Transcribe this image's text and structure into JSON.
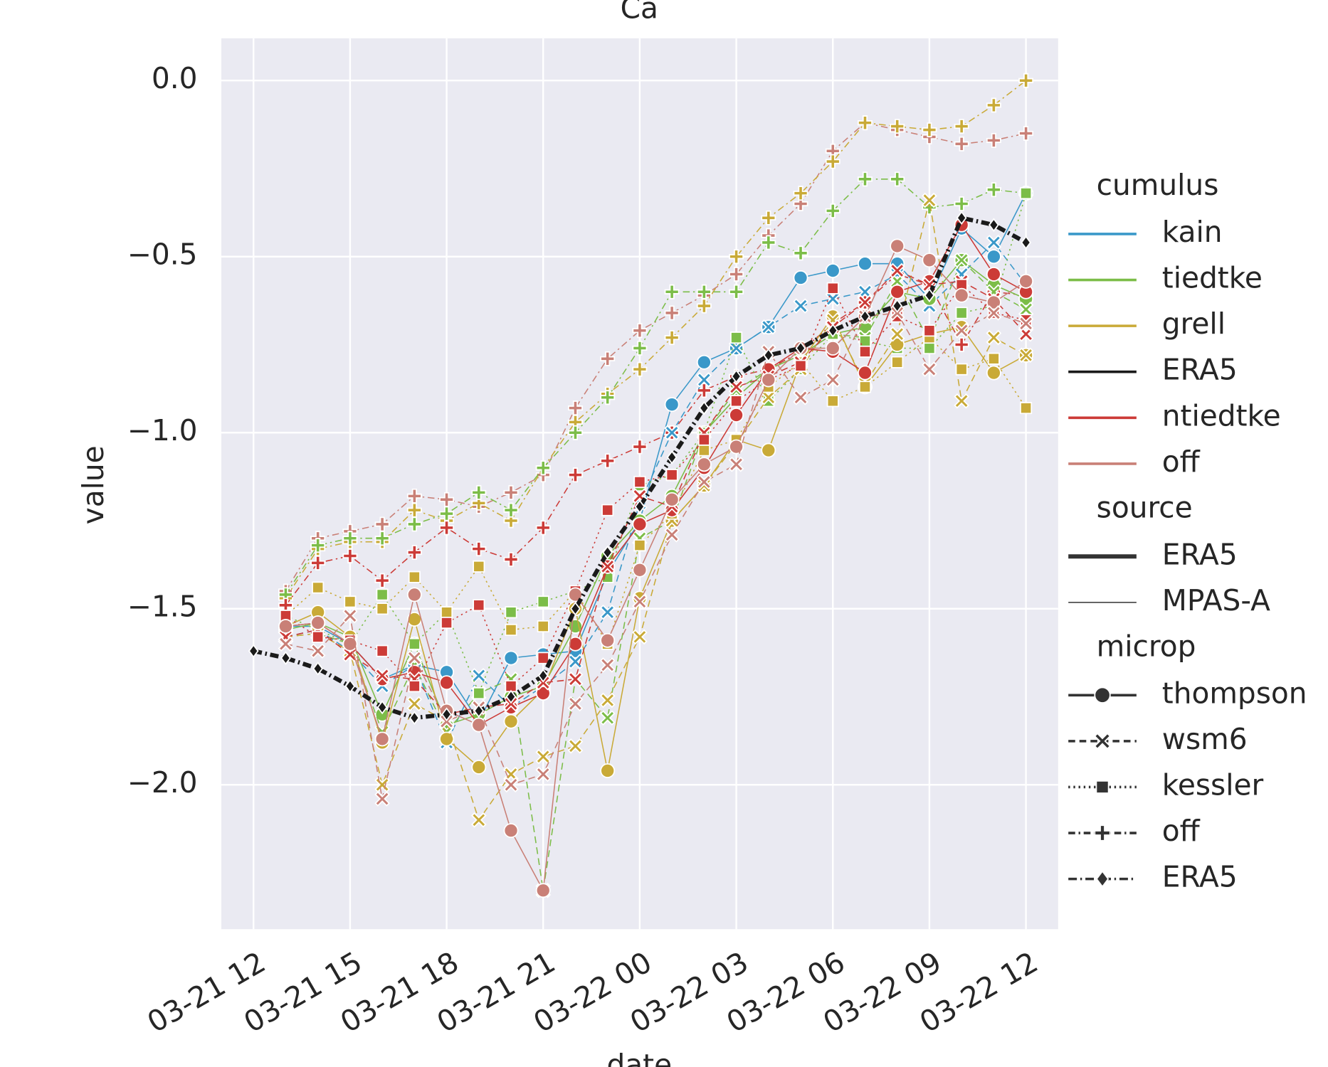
{
  "chart_data": {
    "type": "line",
    "title": "Ca",
    "xlabel": "date",
    "ylabel": "value",
    "x": [
      "03-21 12",
      "03-21 13",
      "03-21 14",
      "03-21 15",
      "03-21 16",
      "03-21 17",
      "03-21 18",
      "03-21 19",
      "03-21 20",
      "03-21 21",
      "03-21 22",
      "03-21 23",
      "03-22 00",
      "03-22 01",
      "03-22 02",
      "03-22 03",
      "03-22 04",
      "03-22 05",
      "03-22 06",
      "03-22 07",
      "03-22 08",
      "03-22 09",
      "03-22 10",
      "03-22 11",
      "03-22 12"
    ],
    "xlim": [
      "03-21 11",
      "03-22 13"
    ],
    "xticks": [
      "03-21 12",
      "03-21 15",
      "03-21 18",
      "03-21 21",
      "03-22 00",
      "03-22 03",
      "03-22 06",
      "03-22 09",
      "03-22 12"
    ],
    "ylim": [
      -2.41,
      0.12
    ],
    "yticks": [
      {
        "value": -2,
        "label": "−2.0"
      },
      {
        "value": -1.5,
        "label": "−1.5"
      },
      {
        "value": -1,
        "label": "−1.0"
      },
      {
        "value": -0.5,
        "label": "−0.5"
      },
      {
        "value": 0,
        "label": "0.0"
      }
    ],
    "grid": true,
    "background": "#eaeaf2",
    "legend": [
      {
        "title": "cumulus",
        "entries": [
          {
            "label": "kain",
            "color": "#3a98c9"
          },
          {
            "label": "tiedtke",
            "color": "#7cbd48"
          },
          {
            "label": "grell",
            "color": "#c9aa37"
          },
          {
            "label": "ERA5",
            "color": "#1a1a1a"
          },
          {
            "label": "ntiedtke",
            "color": "#cc3b37"
          },
          {
            "label": "off",
            "color": "#c98077"
          }
        ]
      },
      {
        "title": "source",
        "entries": [
          {
            "label": "ERA5",
            "width": 5
          },
          {
            "label": "MPAS-A",
            "width": 1.3
          }
        ]
      },
      {
        "title": "microp",
        "entries": [
          {
            "label": "thompson",
            "marker": "circle",
            "dash": ""
          },
          {
            "label": "wsm6",
            "marker": "x",
            "dash": "8,5"
          },
          {
            "label": "kessler",
            "marker": "square",
            "dash": "2,4"
          },
          {
            "label": "off",
            "marker": "plus",
            "dash": "8,4,2,4"
          },
          {
            "label": "ERA5",
            "marker": "diamond",
            "dash": "10,4,2,4"
          }
        ]
      }
    ],
    "series": [
      {
        "cumulus": 5,
        "source": 1,
        "microp": 3,
        "values": [
          null,
          -1.45,
          -1.3,
          -1.28,
          -1.26,
          -1.18,
          -1.19,
          -1.21,
          -1.17,
          -1.12,
          -0.93,
          -0.79,
          -0.71,
          -0.66,
          -0.61,
          -0.55,
          -0.44,
          -0.35,
          -0.2,
          -0.12,
          -0.14,
          -0.16,
          -0.18,
          -0.17,
          -0.15
        ]
      },
      {
        "cumulus": 2,
        "source": 1,
        "microp": 3,
        "values": [
          null,
          -1.47,
          -1.33,
          -1.31,
          -1.31,
          -1.22,
          -1.25,
          -1.2,
          -1.25,
          -1.1,
          -0.97,
          -0.89,
          -0.82,
          -0.73,
          -0.64,
          -0.5,
          -0.39,
          -0.32,
          -0.23,
          -0.12,
          -0.13,
          -0.14,
          -0.13,
          -0.07,
          0.0
        ]
      },
      {
        "cumulus": 1,
        "source": 1,
        "microp": 3,
        "values": [
          null,
          -1.46,
          -1.32,
          -1.3,
          -1.3,
          -1.26,
          -1.23,
          -1.17,
          -1.22,
          -1.1,
          -1.0,
          -0.9,
          -0.76,
          -0.6,
          -0.6,
          -0.6,
          -0.46,
          -0.49,
          -0.37,
          -0.28,
          -0.28,
          -0.36,
          -0.35,
          -0.31,
          -0.32
        ]
      },
      {
        "cumulus": 4,
        "source": 1,
        "microp": 3,
        "values": [
          null,
          -1.49,
          -1.37,
          -1.35,
          -1.42,
          -1.34,
          -1.27,
          -1.33,
          -1.36,
          -1.27,
          -1.12,
          -1.08,
          -1.04,
          -1.0,
          -0.88,
          -0.84,
          -0.82,
          -0.77,
          -0.69,
          -0.63,
          -0.55,
          -0.58,
          -0.75,
          -0.6,
          -0.61
        ]
      },
      {
        "cumulus": 0,
        "source": 1,
        "microp": 0,
        "values": [
          null,
          -1.55,
          -1.55,
          -1.6,
          -1.7,
          -1.66,
          -1.68,
          -1.82,
          -1.64,
          -1.63,
          -1.62,
          -1.4,
          -1.25,
          -0.92,
          -0.8,
          -0.76,
          -0.7,
          -0.56,
          -0.54,
          -0.52,
          -0.52,
          -0.62,
          -0.42,
          -0.5,
          -0.32
        ]
      },
      {
        "cumulus": 0,
        "source": 1,
        "microp": 1,
        "values": [
          null,
          -1.58,
          -1.56,
          -1.62,
          -1.72,
          -1.66,
          -1.88,
          -1.69,
          -1.78,
          -1.72,
          -1.65,
          -1.51,
          -1.2,
          -1.0,
          -0.85,
          -0.76,
          -0.7,
          -0.64,
          -0.62,
          -0.6,
          -0.55,
          -0.64,
          -0.55,
          -0.46,
          -0.58
        ]
      },
      {
        "cumulus": 1,
        "source": 1,
        "microp": 0,
        "values": [
          null,
          -1.56,
          -1.54,
          -1.58,
          -1.8,
          -1.6,
          -1.83,
          -1.8,
          -1.75,
          -1.72,
          -1.55,
          -1.35,
          -1.25,
          -1.18,
          -1.0,
          -0.9,
          -0.82,
          -0.78,
          -0.72,
          -0.7,
          -0.6,
          -0.62,
          -0.51,
          -0.58,
          -0.62
        ]
      },
      {
        "cumulus": 1,
        "source": 1,
        "microp": 1,
        "values": [
          null,
          -1.58,
          -1.57,
          -1.6,
          -1.85,
          -1.66,
          -1.85,
          -1.74,
          -1.7,
          -2.3,
          -1.7,
          -1.81,
          -1.3,
          -1.25,
          -1.0,
          -0.88,
          -0.82,
          -0.78,
          -0.72,
          -0.73,
          -0.57,
          -0.74,
          -0.51,
          -0.6,
          -0.65
        ]
      },
      {
        "cumulus": 1,
        "source": 1,
        "microp": 2,
        "values": [
          null,
          -1.52,
          -1.56,
          -1.6,
          -1.46,
          -1.6,
          -1.51,
          -1.74,
          -1.51,
          -1.48,
          -1.45,
          -1.41,
          -1.15,
          -1.12,
          -1.0,
          -0.73,
          -0.91,
          -0.82,
          -0.72,
          -0.74,
          -0.76,
          -0.76,
          -0.66,
          -0.64,
          -0.32
        ]
      },
      {
        "cumulus": 2,
        "source": 1,
        "microp": 0,
        "values": [
          null,
          -1.55,
          -1.51,
          -1.58,
          -1.88,
          -1.53,
          -1.87,
          -1.95,
          -1.82,
          -1.73,
          -1.5,
          -1.96,
          -1.47,
          -1.25,
          -1.15,
          -1.02,
          -1.05,
          -0.8,
          -0.67,
          -0.87,
          -0.75,
          -0.72,
          -0.7,
          -0.83,
          -0.78
        ]
      },
      {
        "cumulus": 2,
        "source": 1,
        "microp": 1,
        "values": [
          null,
          -1.58,
          -1.57,
          -1.62,
          -2.0,
          -1.77,
          -1.82,
          -2.1,
          -1.97,
          -1.92,
          -1.89,
          -1.76,
          -1.58,
          -1.25,
          -1.15,
          -1.03,
          -0.9,
          -0.82,
          -0.68,
          -0.86,
          -0.72,
          -0.34,
          -0.91,
          -0.73,
          -0.78
        ]
      },
      {
        "cumulus": 2,
        "source": 1,
        "microp": 2,
        "values": [
          null,
          -1.52,
          -1.44,
          -1.48,
          -1.5,
          -1.41,
          -1.51,
          -1.38,
          -1.56,
          -1.55,
          -1.45,
          -1.6,
          -1.32,
          -1.23,
          -1.05,
          -1.02,
          -0.87,
          -0.8,
          -0.91,
          -0.87,
          -0.8,
          -0.73,
          -0.82,
          -0.79,
          -0.93
        ]
      },
      {
        "cumulus": 4,
        "source": 1,
        "microp": 0,
        "values": [
          null,
          -1.55,
          -1.54,
          -1.6,
          -1.7,
          -1.68,
          -1.71,
          -1.83,
          -1.78,
          -1.74,
          -1.6,
          -1.38,
          -1.26,
          -1.22,
          -1.1,
          -0.95,
          -0.82,
          -0.76,
          -0.77,
          -0.83,
          -0.6,
          -0.57,
          -0.41,
          -0.55,
          -0.6
        ]
      },
      {
        "cumulus": 4,
        "source": 1,
        "microp": 1,
        "values": [
          null,
          -1.58,
          -1.56,
          -1.63,
          -1.69,
          -1.7,
          -1.8,
          -1.78,
          -1.77,
          -1.71,
          -1.7,
          -1.38,
          -1.18,
          -1.21,
          -1.0,
          -0.87,
          -0.84,
          -0.8,
          -0.7,
          -0.63,
          -0.54,
          -0.58,
          -0.57,
          -0.62,
          -0.72
        ]
      },
      {
        "cumulus": 4,
        "source": 1,
        "microp": 2,
        "values": [
          null,
          -1.52,
          -1.58,
          -1.59,
          -1.62,
          -1.72,
          -1.54,
          -1.49,
          -1.72,
          -1.64,
          -1.45,
          -1.22,
          -1.14,
          -1.12,
          -1.02,
          -0.91,
          -0.85,
          -0.81,
          -0.59,
          -0.77,
          -0.67,
          -0.71,
          -0.58,
          -0.66,
          -0.68
        ]
      },
      {
        "cumulus": 5,
        "source": 1,
        "microp": 0,
        "values": [
          null,
          -1.55,
          -1.54,
          -1.6,
          -1.87,
          -1.46,
          -1.79,
          -1.83,
          -2.13,
          -2.3,
          -1.46,
          -1.59,
          -1.39,
          -1.19,
          -1.09,
          -1.04,
          -0.85,
          -0.76,
          -0.76,
          -0.67,
          -0.47,
          -0.51,
          -0.61,
          -0.63,
          -0.57
        ]
      },
      {
        "cumulus": 5,
        "source": 1,
        "microp": 1,
        "values": [
          null,
          -1.6,
          -1.62,
          -1.52,
          -2.04,
          -1.64,
          -1.82,
          -1.78,
          -2.0,
          -1.97,
          -1.77,
          -1.66,
          -1.48,
          -1.29,
          -1.14,
          -1.09,
          -0.77,
          -0.9,
          -0.85,
          -0.67,
          -0.66,
          -0.82,
          -0.71,
          -0.66,
          -0.69
        ]
      },
      {
        "cumulus": 3,
        "source": 0,
        "microp": 4,
        "values": [
          -1.62,
          -1.64,
          -1.67,
          -1.72,
          -1.78,
          -1.81,
          -1.8,
          -1.79,
          -1.75,
          -1.69,
          -1.5,
          -1.34,
          -1.21,
          -1.07,
          -0.93,
          -0.84,
          -0.78,
          -0.76,
          -0.71,
          -0.67,
          -0.64,
          -0.61,
          -0.39,
          -0.41,
          -0.46
        ]
      }
    ]
  }
}
